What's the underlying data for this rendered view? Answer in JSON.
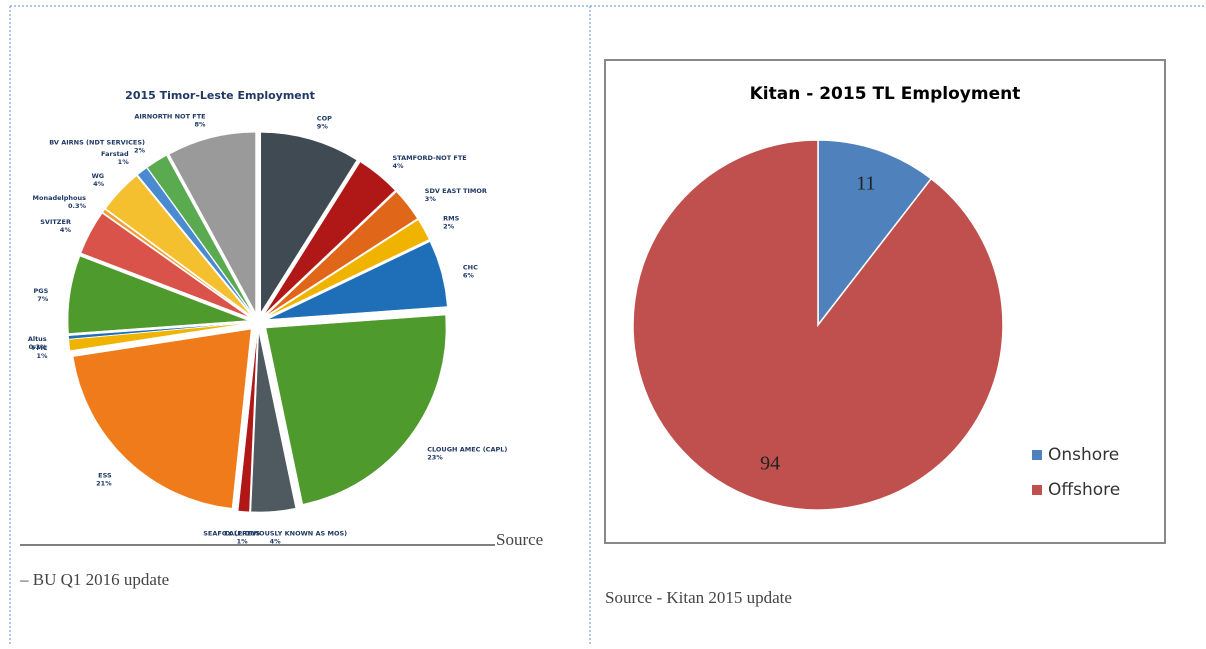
{
  "chart_data": [
    {
      "type": "pie",
      "title": "2015 Timor-Leste Employment",
      "categories": [
        "COP",
        "STAMFORD-NOT FTE",
        "SDV EAST TIMOR",
        "RMS",
        "CHC",
        "CLOUGH AMEC (CAPL)",
        "SEAFOX (PREVIOUSLY KNOWN AS MOS)",
        "CALLIDUS",
        "ESS",
        "FMC",
        "Altus",
        "PGS",
        "SVITZER",
        "Monadelphous",
        "WG",
        "Farstad",
        "BV AIRNS (NDT SERVICES)",
        "AIRNORTH NOT FTE"
      ],
      "values": [
        9,
        4,
        3,
        2,
        6,
        23,
        4,
        1,
        21,
        1,
        0.3,
        7,
        4,
        0.3,
        4,
        1,
        2,
        8
      ],
      "value_labels": [
        "9%",
        "4%",
        "3%",
        "2%",
        "6%",
        "23%",
        "4%",
        "1%",
        "21%",
        "1%",
        "0.3%",
        "7%",
        "4%",
        "0.3%",
        "4%",
        "1%",
        "2%",
        "8%"
      ],
      "colors": [
        "#3f4a52",
        "#b01818",
        "#e0661a",
        "#f0b400",
        "#1f6fb8",
        "#4e9a2c",
        "#4f5a60",
        "#b01818",
        "#f07b1a",
        "#f0b400",
        "#1f6fb8",
        "#4e9a2c",
        "#d9534a",
        "#f0a030",
        "#f5c030",
        "#4a8ad0",
        "#5aaa50",
        "#9a9a9a"
      ]
    },
    {
      "type": "pie",
      "title": "Kitan - 2015 TL Employment",
      "categories": [
        "Onshore",
        "Offshore"
      ],
      "values": [
        11,
        94
      ],
      "colors": [
        "#4f81bd",
        "#c0504d"
      ]
    }
  ],
  "captions": {
    "left_source": "Source",
    "left_update": "– BU Q1 2016 update",
    "right": "Source - Kitan 2015 update"
  }
}
